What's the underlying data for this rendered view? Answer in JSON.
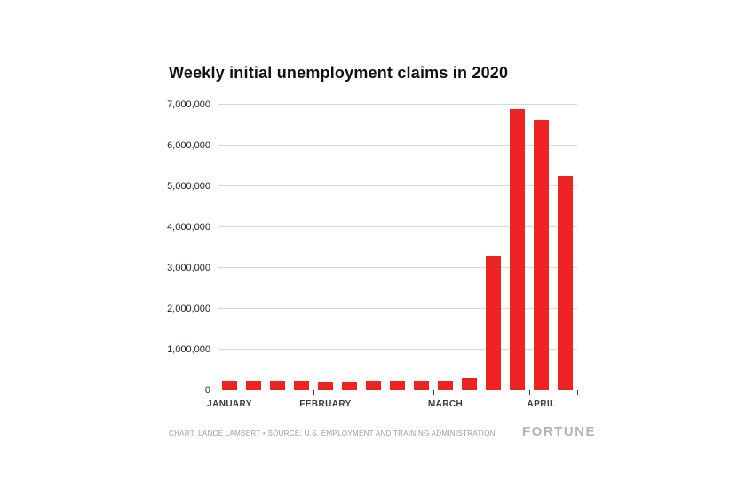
{
  "chart": {
    "title": "Weekly initial unemployment claims in 2020",
    "footer": {
      "credit": "CHART: LANCE LAMBERT • SOURCE: U.S. EMPLOYMENT AND TRAINING ADMINISTRATION",
      "logo": "FORTUNE"
    },
    "colors": {
      "bar": "#ee2424",
      "grid": "#d8d8d8",
      "baseline": "#3c3c3c",
      "text": "#231f20",
      "muted": "#9b9da0"
    }
  },
  "chart_data": {
    "type": "bar",
    "title": "Weekly initial unemployment claims in 2020",
    "xlabel": "",
    "ylabel": "",
    "ylim": [
      0,
      7000000
    ],
    "ytick_step": 1000000,
    "ytick_labels": [
      "0",
      "1,000,000",
      "2,000,000",
      "3,000,000",
      "4,000,000",
      "5,000,000",
      "6,000,000",
      "7,000,000"
    ],
    "grid": true,
    "legend": "none",
    "bar_color": "#ee2424",
    "months": [
      {
        "label": "JANUARY",
        "first_bar_index": 0
      },
      {
        "label": "FEBRUARY",
        "first_bar_index": 4
      },
      {
        "label": "MARCH",
        "first_bar_index": 9
      },
      {
        "label": "APRIL",
        "first_bar_index": 13
      }
    ],
    "values": [
      214000,
      220000,
      223000,
      212000,
      201000,
      204000,
      215000,
      219000,
      217000,
      211000,
      282000,
      3283000,
      6867000,
      6615000,
      5245000
    ]
  }
}
